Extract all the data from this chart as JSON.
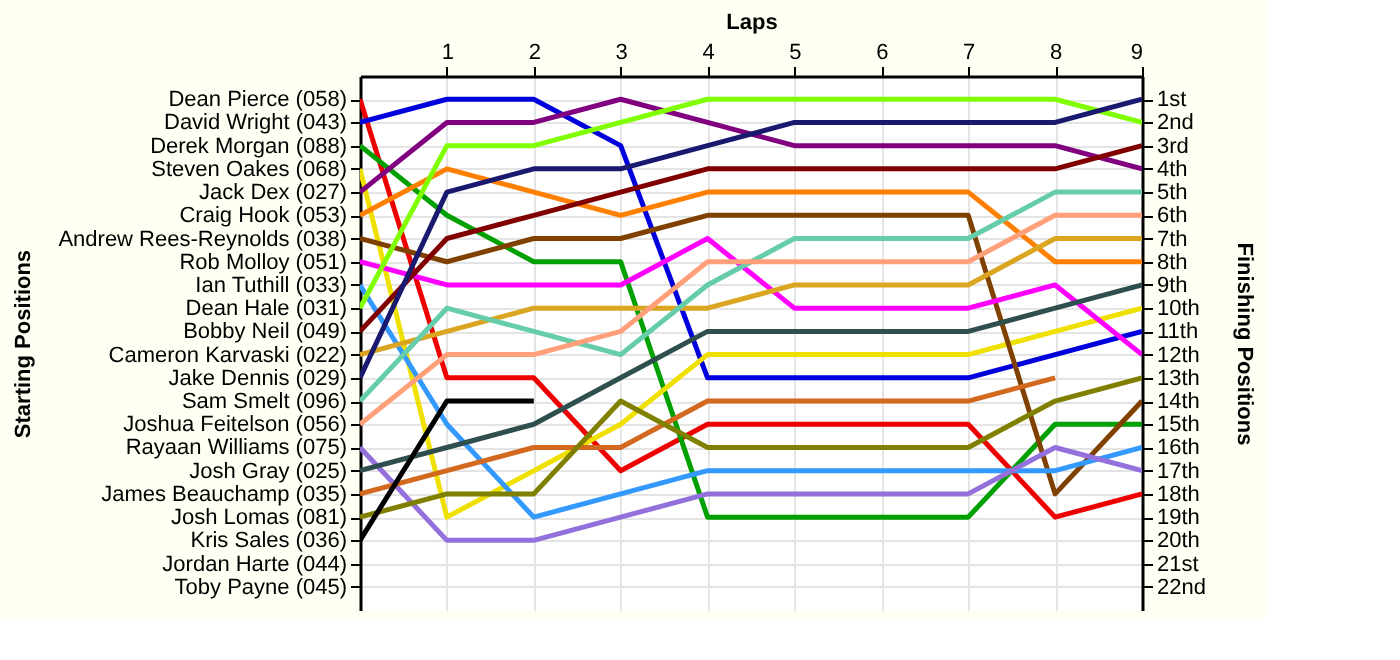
{
  "chart_data": {
    "type": "line",
    "xlabel": "Laps",
    "y2label": "Finishing Positions",
    "x": [
      0,
      1,
      2,
      3,
      4,
      5,
      6,
      7,
      8,
      9
    ],
    "xlim": [
      0,
      9
    ],
    "xticks": [
      1,
      2,
      3,
      4,
      5,
      6,
      7,
      8,
      9
    ],
    "annotations": [
      "Starting Positions",
      "Dean Pierce (058)",
      "David Wright (043)",
      "Derek Morgan (088)",
      "Steven Oakes (068)",
      "Jack Dex (027)",
      "Craig Hook (053)",
      "Andrew Rees-Reynolds (038)",
      "Rob Molloy (051)",
      "Ian Tuthill (033)",
      "Dean Hale (031)",
      "Bobby Neil (049)",
      "Cameron Karvaski (022)",
      "Jake Dennis (029)",
      "Sam Smelt (096)",
      "Joshua Feitelson (056)",
      "Rayaan Williams (075)",
      "Josh Gray (025)",
      "James Beauchamp (035)",
      "Josh Lomas (081)",
      "Kris Sales (036)",
      "Jordan Harte (044)",
      "Toby Payne (045)"
    ],
    "y2lim": [
      23,
      0
    ],
    "y2ticks": [
      {
        "value": 1,
        "label": "1st"
      },
      {
        "value": 2,
        "label": "2nd"
      },
      {
        "value": 3,
        "label": "3rd"
      },
      {
        "value": 4,
        "label": "4th"
      },
      {
        "value": 5,
        "label": "5th"
      },
      {
        "value": 6,
        "label": "6th"
      },
      {
        "value": 7,
        "label": "7th"
      },
      {
        "value": 8,
        "label": "8th"
      },
      {
        "value": 9,
        "label": "9th"
      },
      {
        "value": 10,
        "label": "10th"
      },
      {
        "value": 11,
        "label": "11th"
      },
      {
        "value": 12,
        "label": "12th"
      },
      {
        "value": 13,
        "label": "13th"
      },
      {
        "value": 14,
        "label": "14th"
      },
      {
        "value": 15,
        "label": "15th"
      },
      {
        "value": 16,
        "label": "16th"
      },
      {
        "value": 17,
        "label": "17th"
      },
      {
        "value": 18,
        "label": "18th"
      },
      {
        "value": 19,
        "label": "19th"
      },
      {
        "value": 20,
        "label": "20th"
      },
      {
        "value": 21,
        "label": "21st"
      },
      {
        "value": 22,
        "label": "22nd"
      }
    ],
    "grid": true,
    "legend": false,
    "marker": "none",
    "line_style": "solid",
    "series": [
      {
        "axis": "y2",
        "color": "#ee0000",
        "values": [
          1,
          13,
          13,
          17,
          15,
          15,
          15,
          15,
          19,
          18
        ]
      },
      {
        "axis": "y2",
        "color": "#0000dd",
        "values": [
          2,
          1,
          1,
          3,
          13,
          13,
          13,
          13,
          12,
          11
        ]
      },
      {
        "axis": "y2",
        "color": "#00a000",
        "values": [
          3,
          6,
          8,
          8,
          19,
          19,
          19,
          19,
          15,
          15
        ]
      },
      {
        "axis": "y2",
        "color": "#f0e000",
        "values": [
          4,
          19,
          17,
          15,
          12,
          12,
          12,
          12,
          11,
          10
        ]
      },
      {
        "axis": "y2",
        "color": "#800080",
        "values": [
          5,
          2,
          2,
          1,
          2,
          3,
          3,
          3,
          3,
          4
        ]
      },
      {
        "axis": "y2",
        "color": "#ff8000",
        "values": [
          6,
          4,
          5,
          6,
          5,
          5,
          5,
          5,
          8,
          8
        ]
      },
      {
        "axis": "y2",
        "color": "#804000",
        "values": [
          7,
          8,
          7,
          7,
          6,
          6,
          6,
          6,
          18,
          14
        ]
      },
      {
        "axis": "y2",
        "color": "#ff00ff",
        "values": [
          8,
          9,
          9,
          9,
          7,
          10,
          10,
          10,
          9,
          12
        ]
      },
      {
        "axis": "y2",
        "color": "#3399ff",
        "values": [
          9,
          15,
          19,
          18,
          17,
          17,
          17,
          17,
          17,
          16
        ]
      },
      {
        "axis": "y2",
        "color": "#80ff00",
        "values": [
          10,
          3,
          3,
          2,
          1,
          1,
          1,
          1,
          1,
          2
        ]
      },
      {
        "axis": "y2",
        "color": "#800000",
        "values": [
          11,
          7,
          6,
          5,
          4,
          4,
          4,
          4,
          4,
          3
        ]
      },
      {
        "axis": "y2",
        "color": "#daa520",
        "values": [
          12,
          11,
          10,
          10,
          10,
          9,
          9,
          9,
          7,
          7
        ]
      },
      {
        "axis": "y2",
        "color": "#191970",
        "values": [
          13,
          5,
          4,
          4,
          3,
          2,
          2,
          2,
          2,
          1
        ]
      },
      {
        "axis": "y2",
        "color": "#66cdaa",
        "values": [
          14,
          10,
          11,
          12,
          9,
          7,
          7,
          7,
          5,
          5
        ]
      },
      {
        "axis": "y2",
        "color": "#ffa07a",
        "values": [
          15,
          12,
          12,
          11,
          8,
          8,
          8,
          8,
          6,
          6
        ]
      },
      {
        "axis": "y2",
        "color": "#9370db",
        "values": [
          16,
          20,
          20,
          19,
          18,
          18,
          18,
          18,
          16,
          17
        ]
      },
      {
        "axis": "y2",
        "color": "#2f4f4f",
        "values": [
          17,
          16,
          15,
          13,
          11,
          11,
          11,
          11,
          10,
          9
        ]
      },
      {
        "axis": "y2",
        "color": "#d2691e",
        "values": [
          18,
          17,
          16,
          16,
          14,
          14,
          14,
          14,
          13,
          null
        ]
      },
      {
        "axis": "y2",
        "color": "#808000",
        "values": [
          19,
          18,
          18,
          14,
          16,
          16,
          16,
          16,
          14,
          13
        ]
      },
      {
        "axis": "y2",
        "color": "#000000",
        "values": [
          20,
          14,
          14,
          null,
          null,
          null,
          null,
          null,
          null,
          null
        ]
      }
    ]
  }
}
